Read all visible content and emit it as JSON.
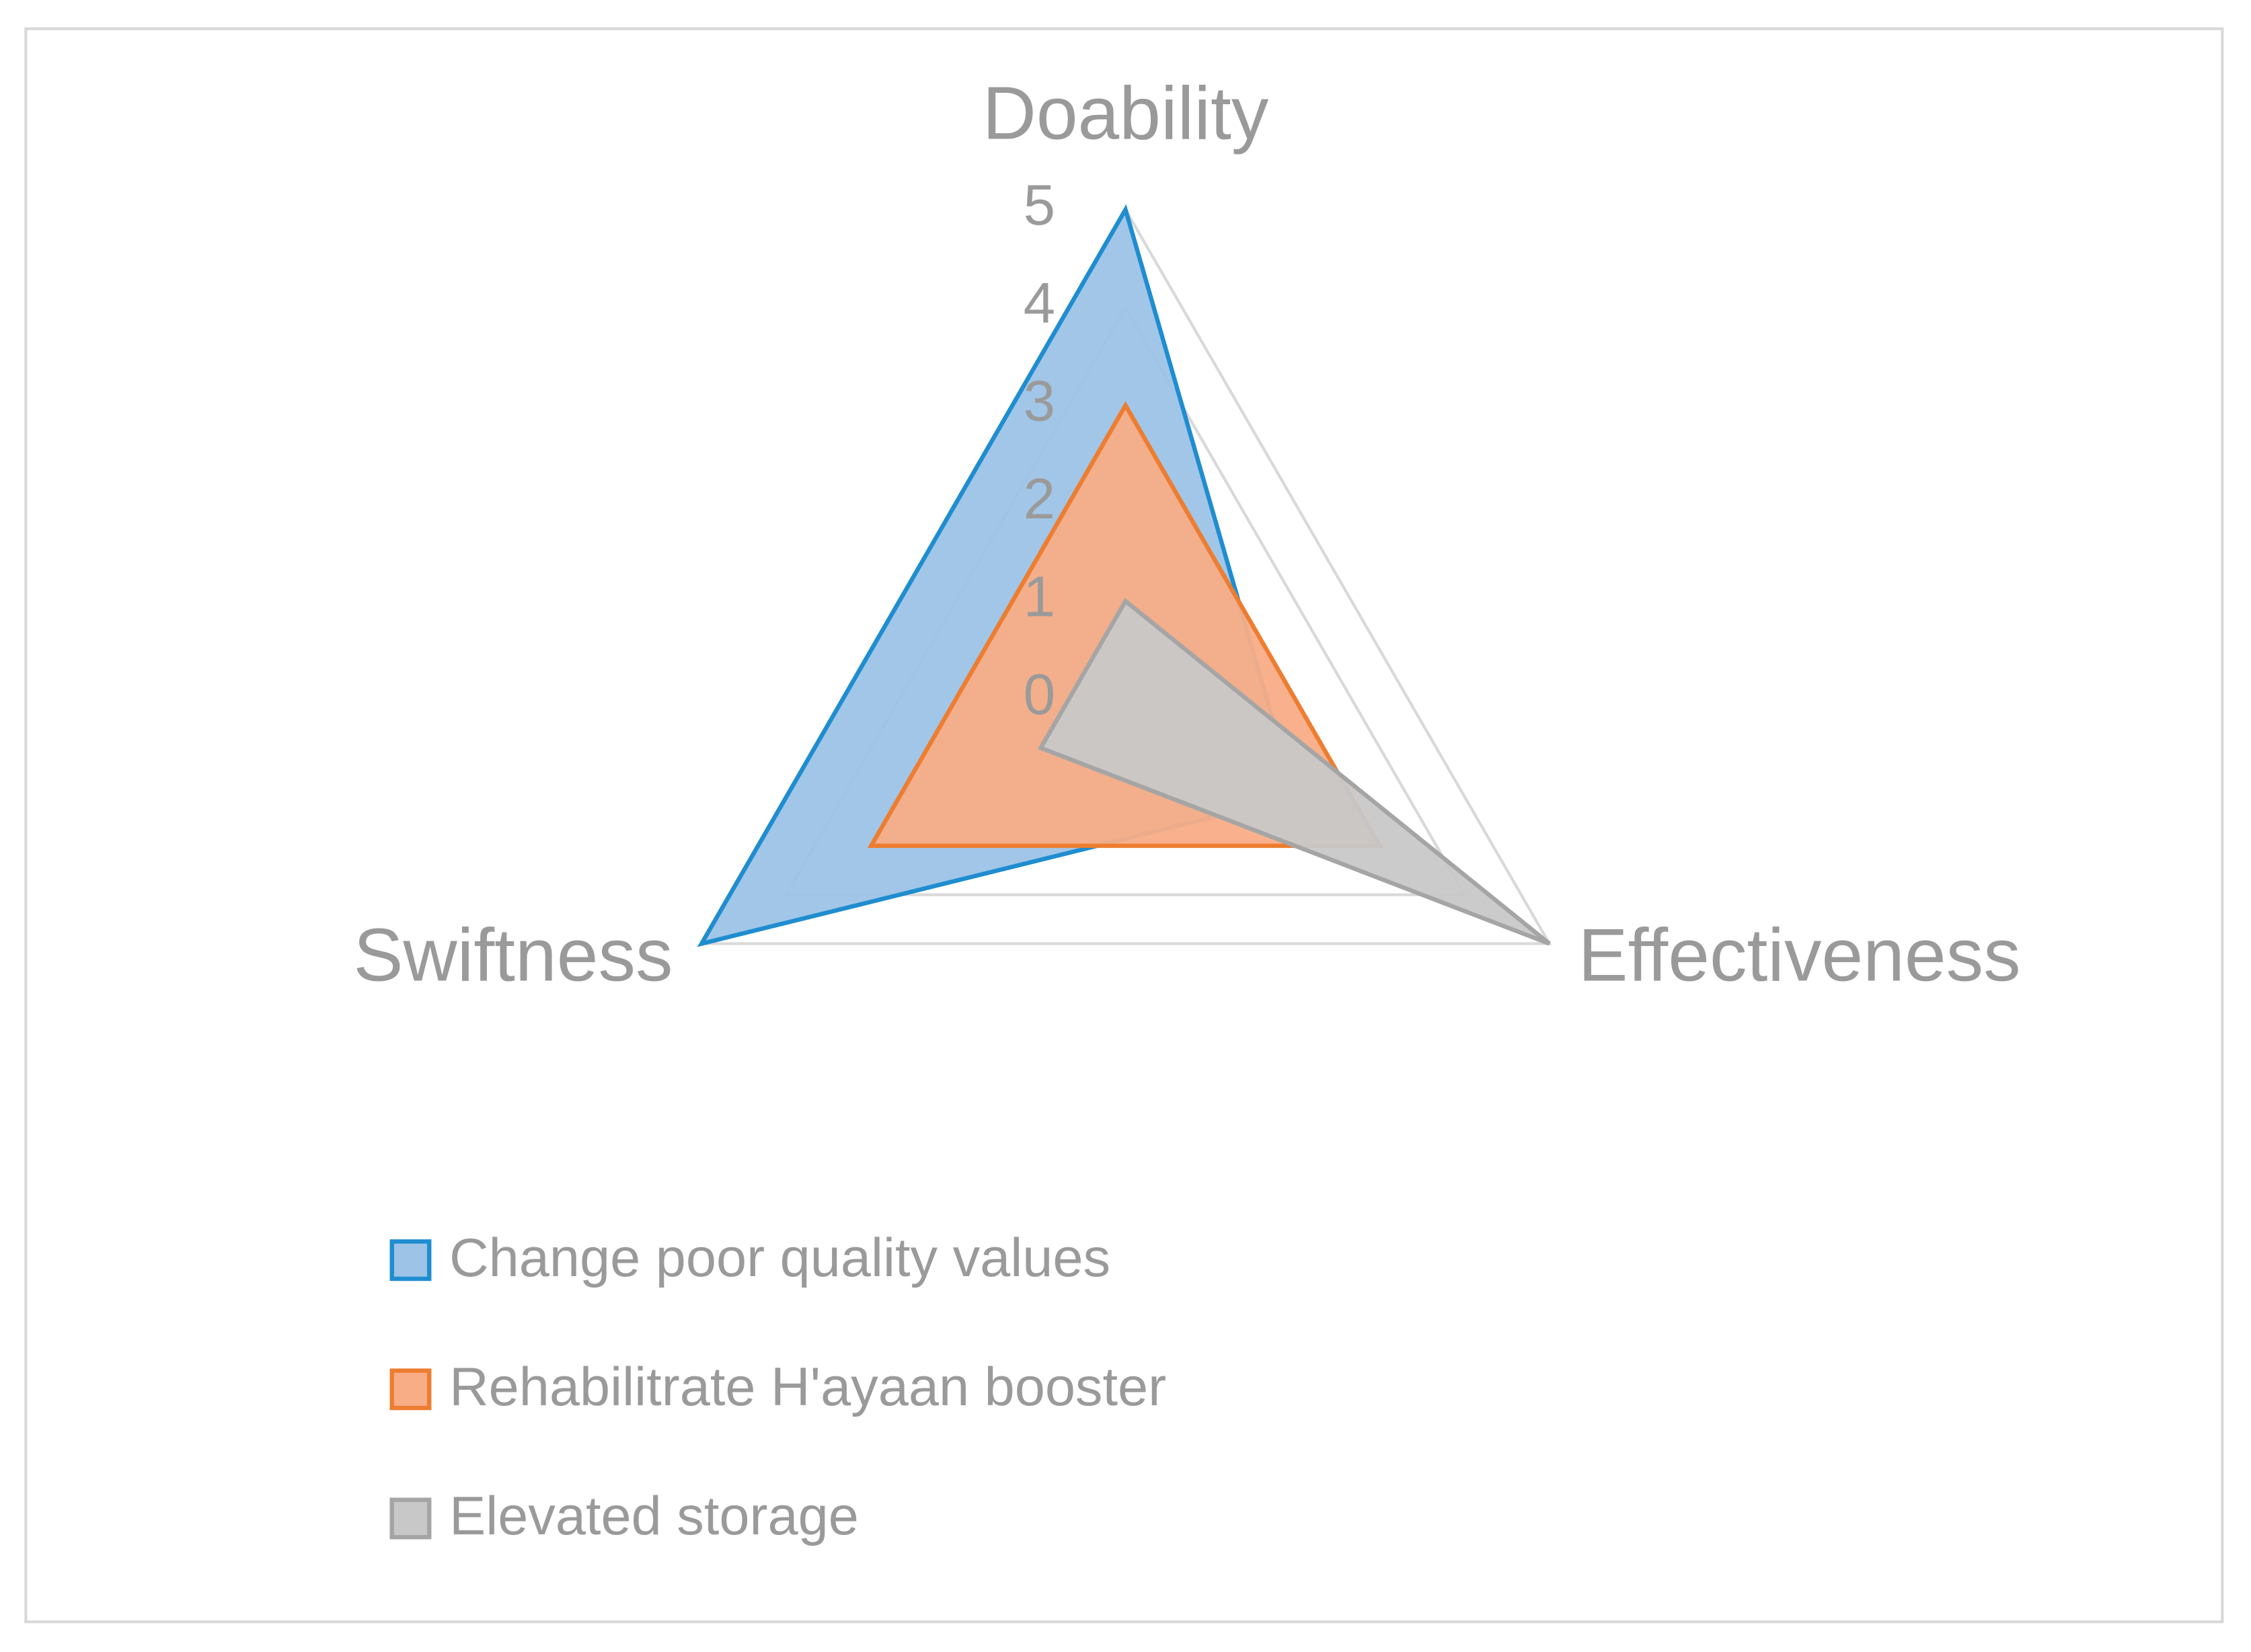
{
  "chart_data": {
    "type": "radar",
    "categories": [
      "Doability",
      "Effectiveness",
      "Swiftness"
    ],
    "series": [
      {
        "name": "Change poor quality values",
        "color": "#1f8dd0",
        "fill": "#9dc3e6",
        "values": [
          5,
          2,
          5
        ]
      },
      {
        "name": "Rehabilitrate H'ayaan booster",
        "color": "#ed7d31",
        "fill": "#f8ad86",
        "values": [
          3,
          3,
          3
        ]
      },
      {
        "name": "Elevated storage",
        "color": "#a5a5a5",
        "fill": "#c8c8c8",
        "values": [
          1,
          5,
          1
        ]
      }
    ],
    "ylim": [
      0,
      5
    ],
    "yticks": [
      0,
      1,
      2,
      3,
      4,
      5
    ],
    "grid": true,
    "legend": "bottom"
  }
}
